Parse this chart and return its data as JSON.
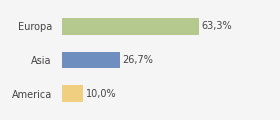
{
  "categories": [
    "Europa",
    "Asia",
    "America"
  ],
  "values": [
    63.3,
    26.7,
    10.0
  ],
  "labels": [
    "63,3%",
    "26,7%",
    "10,0%"
  ],
  "bar_colors": [
    "#b5c98e",
    "#6e8ebf",
    "#f0d080"
  ],
  "background_color": "#f5f5f5",
  "xlim": [
    0,
    85
  ],
  "bar_height": 0.5,
  "label_fontsize": 7,
  "tick_fontsize": 7
}
